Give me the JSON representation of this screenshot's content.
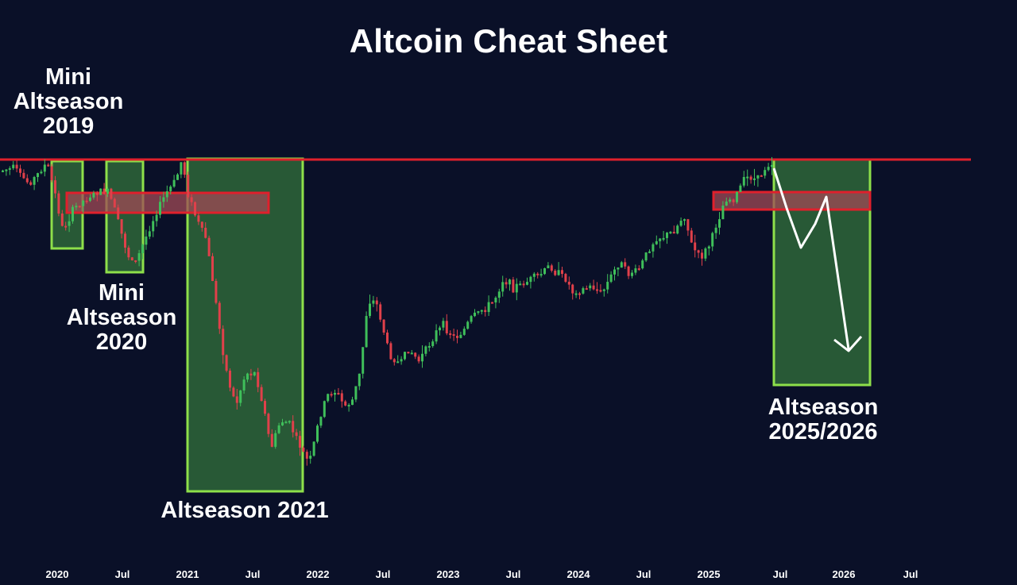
{
  "title": "Altcoin Cheat Sheet",
  "colors": {
    "background": "#0a1028",
    "up_candle": "#3fbf5a",
    "down_candle": "#e0404a",
    "zone_fill": "#2f6b3a",
    "zone_border": "#8ee04a",
    "resistance_line": "#e0202c",
    "retest_box": "#a04a55",
    "projection_arrow": "#ffffff"
  },
  "zones": [
    {
      "id": "mini-2019",
      "label": "Mini\nAltseason\n2019"
    },
    {
      "id": "mini-2020",
      "label": "Mini\nAltseason\n2020"
    },
    {
      "id": "altseason-2021",
      "label": "Altseason 2021"
    },
    {
      "id": "altseason-2025",
      "label": "Altseason\n2025/2026"
    }
  ],
  "x_axis_ticks": [
    "2020",
    "Jul",
    "2021",
    "Jul",
    "2022",
    "Jul",
    "2023",
    "Jul",
    "2024",
    "Jul",
    "2025",
    "Jul",
    "2026",
    "Jul"
  ],
  "chart_data": {
    "type": "candlestick",
    "title": "Altcoin Cheat Sheet",
    "x_axis": "time (monthly ticks, 2020 – Jul 2026)",
    "y_axis": "price (unlabeled)",
    "annotations": [
      "Horizontal resistance line across the top",
      "Red retest box around 2019–2020",
      "Red retest box around 2025",
      "White projection arrow: drop, bounce, then sharp fall inside 2025/2026 zone"
    ],
    "highlighted_periods": [
      "Mini Altseason 2019",
      "Mini Altseason 2020",
      "Altseason 2021",
      "Altseason 2025/2026"
    ]
  }
}
